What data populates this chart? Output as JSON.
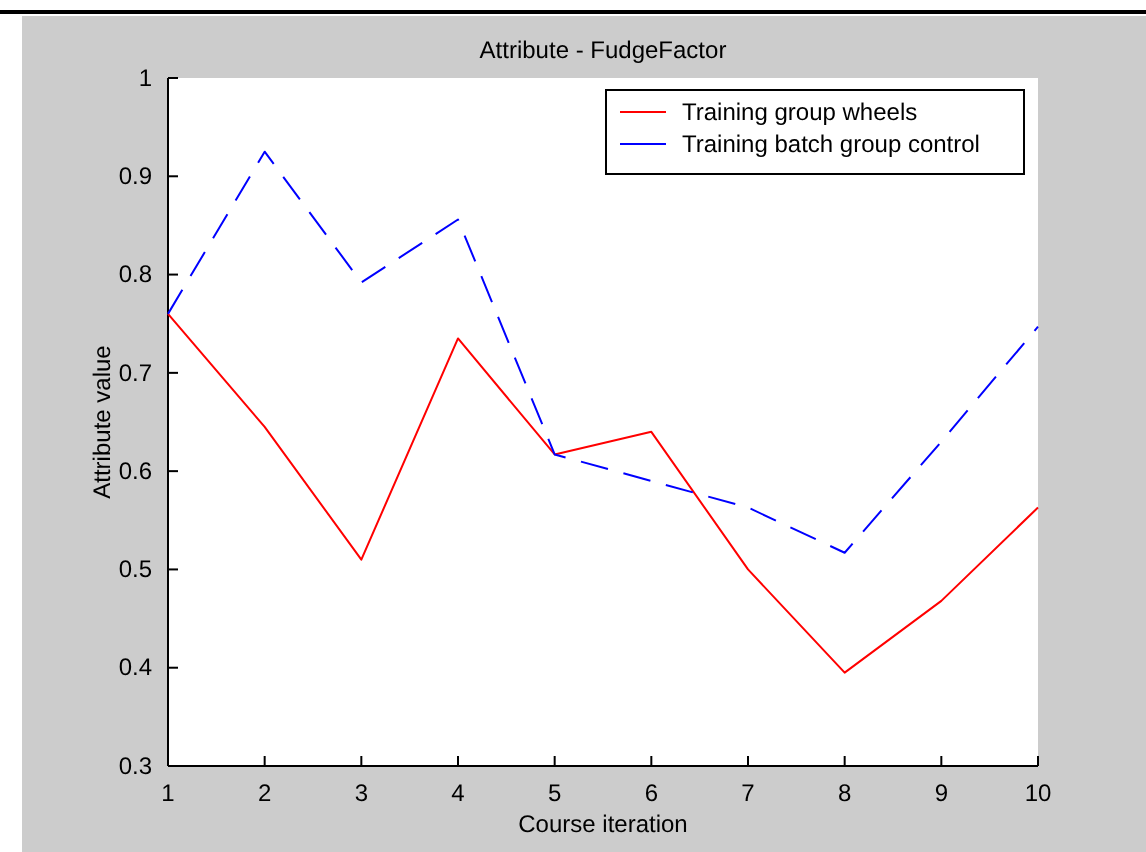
{
  "chart_data": {
    "type": "line",
    "title": "Attribute - FudgeFactor",
    "xlabel": "Course iteration",
    "ylabel": "Attribute value",
    "x": [
      1,
      2,
      3,
      4,
      5,
      6,
      7,
      8,
      9,
      10
    ],
    "series": [
      {
        "name": "Training group wheels",
        "color": "#ff0000",
        "line_style": "solid",
        "values": [
          0.76,
          0.645,
          0.51,
          0.735,
          0.617,
          0.64,
          0.5,
          0.395,
          0.468,
          0.563
        ]
      },
      {
        "name": "Training batch group control",
        "color": "#0000ff",
        "line_style": "dashed",
        "values": [
          0.76,
          0.925,
          0.792,
          0.856,
          0.617,
          0.59,
          0.563,
          0.517,
          0.63,
          0.747
        ]
      }
    ],
    "xlim": [
      1,
      10
    ],
    "xticks": [
      1,
      2,
      3,
      4,
      5,
      6,
      7,
      8,
      9,
      10
    ],
    "ylim": [
      0.3,
      1
    ],
    "yticks": [
      0.3,
      0.4,
      0.5,
      0.6,
      0.7,
      0.8,
      0.9,
      1
    ],
    "grid": false,
    "legend": "top right",
    "marker": "none"
  }
}
